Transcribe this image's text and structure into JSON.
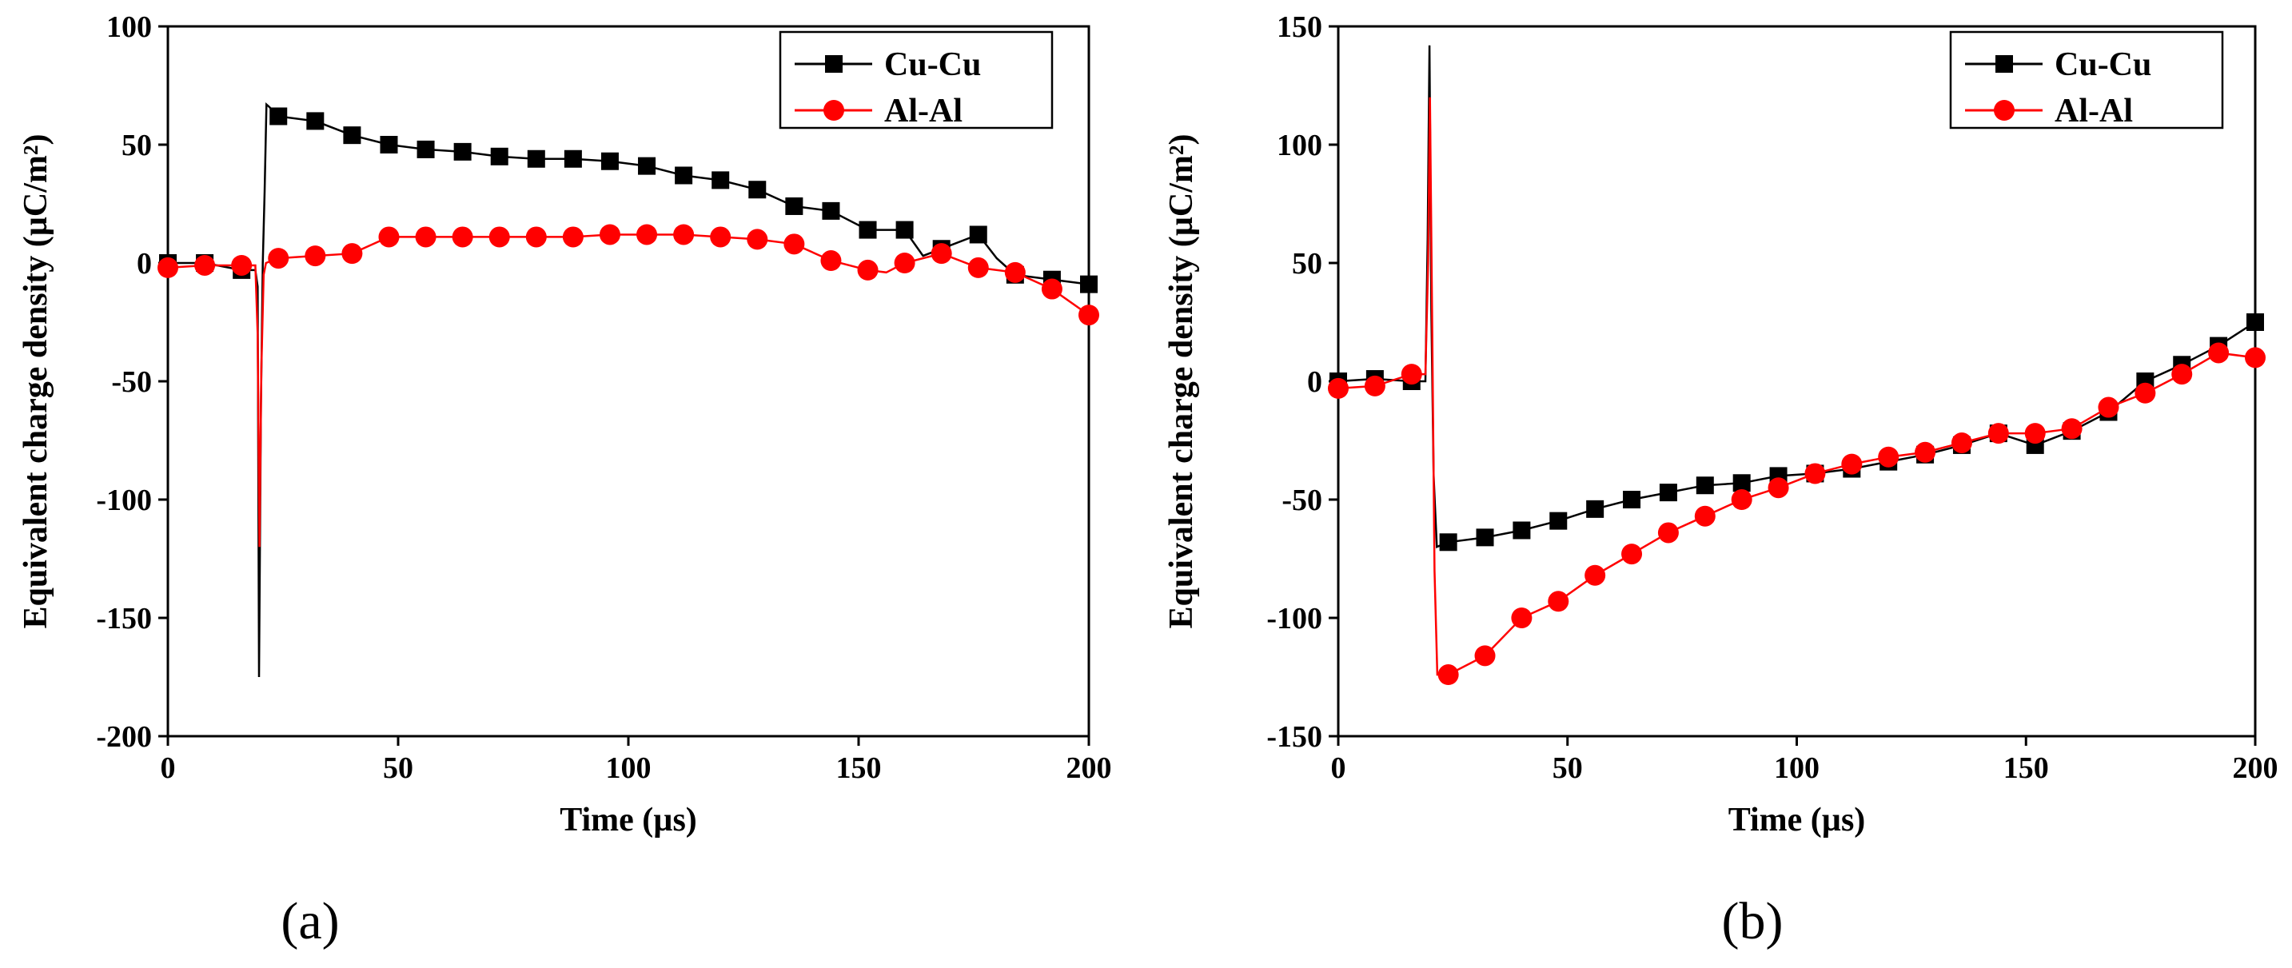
{
  "chart_data": [
    {
      "type": "line",
      "panel_label": "(a)",
      "xlabel": "Time (µs)",
      "ylabel": "Equivalent charge density (µC/m²)",
      "xlim": [
        0,
        200
      ],
      "ylim": [
        -200,
        100
      ],
      "xticks": [
        0,
        50,
        100,
        150,
        200
      ],
      "yticks": [
        -200,
        -150,
        -100,
        -50,
        0,
        50,
        100
      ],
      "legend_position": "top-right",
      "series": [
        {
          "name": "Cu-Cu",
          "color": "#000000",
          "marker": "square",
          "markers": [
            [
              0,
              0
            ],
            [
              8,
              0
            ],
            [
              16,
              -3
            ],
            [
              24,
              62
            ],
            [
              32,
              60
            ],
            [
              40,
              54
            ],
            [
              48,
              50
            ],
            [
              56,
              48
            ],
            [
              64,
              47
            ],
            [
              72,
              45
            ],
            [
              80,
              44
            ],
            [
              88,
              44
            ],
            [
              96,
              43
            ],
            [
              104,
              41
            ],
            [
              112,
              37
            ],
            [
              120,
              35
            ],
            [
              128,
              31
            ],
            [
              136,
              24
            ],
            [
              144,
              22
            ],
            [
              152,
              14
            ],
            [
              160,
              14
            ],
            [
              168,
              6
            ],
            [
              176,
              12
            ],
            [
              184,
              -5
            ],
            [
              192,
              -7
            ],
            [
              200,
              -9
            ]
          ],
          "line": [
            [
              0,
              0
            ],
            [
              8,
              0
            ],
            [
              16,
              -3
            ],
            [
              19,
              -3
            ],
            [
              19.5,
              -10
            ],
            [
              19.8,
              -175
            ],
            [
              20.2,
              -60
            ],
            [
              20.6,
              0
            ],
            [
              21,
              30
            ],
            [
              21.4,
              67
            ],
            [
              22,
              66
            ],
            [
              24,
              62
            ],
            [
              32,
              60
            ],
            [
              40,
              54
            ],
            [
              48,
              50
            ],
            [
              56,
              48
            ],
            [
              64,
              47
            ],
            [
              72,
              45
            ],
            [
              80,
              44
            ],
            [
              88,
              44
            ],
            [
              96,
              43
            ],
            [
              104,
              41
            ],
            [
              112,
              37
            ],
            [
              120,
              35
            ],
            [
              128,
              31
            ],
            [
              136,
              24
            ],
            [
              144,
              22
            ],
            [
              152,
              14
            ],
            [
              160,
              14
            ],
            [
              164,
              3
            ],
            [
              168,
              6
            ],
            [
              176,
              12
            ],
            [
              180,
              2
            ],
            [
              184,
              -5
            ],
            [
              192,
              -7
            ],
            [
              200,
              -9
            ]
          ]
        },
        {
          "name": "Al-Al",
          "color": "#ff0000",
          "marker": "circle",
          "markers": [
            [
              0,
              -2
            ],
            [
              8,
              -1
            ],
            [
              16,
              -1
            ],
            [
              24,
              2
            ],
            [
              32,
              3
            ],
            [
              40,
              4
            ],
            [
              48,
              11
            ],
            [
              56,
              11
            ],
            [
              64,
              11
            ],
            [
              72,
              11
            ],
            [
              80,
              11
            ],
            [
              88,
              11
            ],
            [
              96,
              12
            ],
            [
              104,
              12
            ],
            [
              112,
              12
            ],
            [
              120,
              11
            ],
            [
              128,
              10
            ],
            [
              136,
              8
            ],
            [
              144,
              1
            ],
            [
              152,
              -3
            ],
            [
              160,
              0
            ],
            [
              168,
              4
            ],
            [
              176,
              -2
            ],
            [
              184,
              -4
            ],
            [
              192,
              -11
            ],
            [
              200,
              -22
            ]
          ],
          "line": [
            [
              0,
              -2
            ],
            [
              8,
              -1
            ],
            [
              16,
              -1
            ],
            [
              19,
              -1
            ],
            [
              19.5,
              -30
            ],
            [
              19.9,
              -120
            ],
            [
              20.3,
              -45
            ],
            [
              20.8,
              -5
            ],
            [
              21.3,
              0
            ],
            [
              24,
              2
            ],
            [
              32,
              3
            ],
            [
              40,
              4
            ],
            [
              48,
              11
            ],
            [
              56,
              11
            ],
            [
              64,
              11
            ],
            [
              72,
              11
            ],
            [
              80,
              11
            ],
            [
              88,
              11
            ],
            [
              96,
              12
            ],
            [
              104,
              12
            ],
            [
              112,
              12
            ],
            [
              120,
              11
            ],
            [
              128,
              10
            ],
            [
              136,
              8
            ],
            [
              144,
              1
            ],
            [
              152,
              -3
            ],
            [
              156,
              -4
            ],
            [
              160,
              0
            ],
            [
              168,
              4
            ],
            [
              176,
              -2
            ],
            [
              184,
              -4
            ],
            [
              192,
              -11
            ],
            [
              200,
              -22
            ]
          ]
        }
      ]
    },
    {
      "type": "line",
      "panel_label": "(b)",
      "xlabel": "Time (µs)",
      "ylabel": "Equivalent charge density (µC/m²)",
      "xlim": [
        0,
        200
      ],
      "ylim": [
        -150,
        150
      ],
      "xticks": [
        0,
        50,
        100,
        150,
        200
      ],
      "yticks": [
        -150,
        -100,
        -50,
        0,
        50,
        100,
        150
      ],
      "legend_position": "top-right",
      "series": [
        {
          "name": "Cu-Cu",
          "color": "#000000",
          "marker": "square",
          "markers": [
            [
              0,
              0
            ],
            [
              8,
              1
            ],
            [
              16,
              0
            ],
            [
              24,
              -68
            ],
            [
              32,
              -66
            ],
            [
              40,
              -63
            ],
            [
              48,
              -59
            ],
            [
              56,
              -54
            ],
            [
              64,
              -50
            ],
            [
              72,
              -47
            ],
            [
              80,
              -44
            ],
            [
              88,
              -43
            ],
            [
              96,
              -40
            ],
            [
              104,
              -39
            ],
            [
              112,
              -37
            ],
            [
              120,
              -34
            ],
            [
              128,
              -31
            ],
            [
              136,
              -27
            ],
            [
              144,
              -22
            ],
            [
              152,
              -27
            ],
            [
              160,
              -21
            ],
            [
              168,
              -13
            ],
            [
              176,
              0
            ],
            [
              184,
              7
            ],
            [
              192,
              15
            ],
            [
              200,
              25
            ]
          ],
          "line": [
            [
              0,
              0
            ],
            [
              8,
              1
            ],
            [
              16,
              0
            ],
            [
              19,
              0
            ],
            [
              19.5,
              60
            ],
            [
              19.9,
              142
            ],
            [
              20.3,
              30
            ],
            [
              20.8,
              -40
            ],
            [
              21.5,
              -70
            ],
            [
              24,
              -68
            ],
            [
              32,
              -66
            ],
            [
              40,
              -63
            ],
            [
              48,
              -59
            ],
            [
              56,
              -54
            ],
            [
              64,
              -50
            ],
            [
              72,
              -47
            ],
            [
              80,
              -44
            ],
            [
              88,
              -43
            ],
            [
              96,
              -40
            ],
            [
              104,
              -39
            ],
            [
              112,
              -37
            ],
            [
              120,
              -34
            ],
            [
              128,
              -31
            ],
            [
              136,
              -27
            ],
            [
              144,
              -22
            ],
            [
              152,
              -27
            ],
            [
              160,
              -21
            ],
            [
              168,
              -13
            ],
            [
              176,
              0
            ],
            [
              184,
              7
            ],
            [
              192,
              15
            ],
            [
              200,
              25
            ]
          ]
        },
        {
          "name": "Al-Al",
          "color": "#ff0000",
          "marker": "circle",
          "markers": [
            [
              0,
              -3
            ],
            [
              8,
              -2
            ],
            [
              16,
              3
            ],
            [
              24,
              -124
            ],
            [
              32,
              -116
            ],
            [
              40,
              -100
            ],
            [
              48,
              -93
            ],
            [
              56,
              -82
            ],
            [
              64,
              -73
            ],
            [
              72,
              -64
            ],
            [
              80,
              -57
            ],
            [
              88,
              -50
            ],
            [
              96,
              -45
            ],
            [
              104,
              -39
            ],
            [
              112,
              -35
            ],
            [
              120,
              -32
            ],
            [
              128,
              -30
            ],
            [
              136,
              -26
            ],
            [
              144,
              -22
            ],
            [
              152,
              -22
            ],
            [
              160,
              -20
            ],
            [
              168,
              -11
            ],
            [
              176,
              -5
            ],
            [
              184,
              3
            ],
            [
              192,
              12
            ],
            [
              200,
              10
            ]
          ],
          "line": [
            [
              0,
              -3
            ],
            [
              8,
              -2
            ],
            [
              16,
              3
            ],
            [
              19,
              3
            ],
            [
              19.6,
              50
            ],
            [
              20,
              120
            ],
            [
              20.5,
              20
            ],
            [
              21,
              -80
            ],
            [
              21.6,
              -124
            ],
            [
              24,
              -124
            ],
            [
              32,
              -116
            ],
            [
              40,
              -100
            ],
            [
              48,
              -93
            ],
            [
              56,
              -82
            ],
            [
              64,
              -73
            ],
            [
              72,
              -64
            ],
            [
              80,
              -57
            ],
            [
              88,
              -50
            ],
            [
              96,
              -45
            ],
            [
              104,
              -39
            ],
            [
              112,
              -35
            ],
            [
              120,
              -32
            ],
            [
              128,
              -30
            ],
            [
              136,
              -26
            ],
            [
              144,
              -22
            ],
            [
              152,
              -22
            ],
            [
              160,
              -20
            ],
            [
              168,
              -11
            ],
            [
              176,
              -5
            ],
            [
              184,
              3
            ],
            [
              192,
              12
            ],
            [
              200,
              10
            ]
          ]
        }
      ]
    }
  ]
}
